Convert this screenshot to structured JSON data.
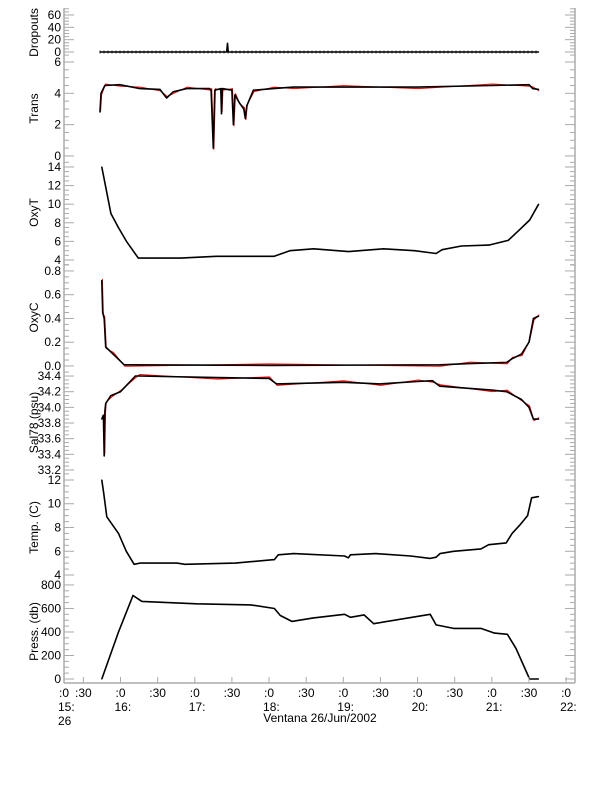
{
  "chart_data": {
    "type": "line",
    "title": "Ventana 26/Jun/2002",
    "xlabel": "Ventana 26/Jun/2002",
    "x_units": "hours (decimal, local time)",
    "xlim": [
      15.239,
      22.12
    ],
    "x_ticks": [
      {
        "x": 15.239,
        "lines": [
          ":0",
          "15:",
          "26"
        ]
      },
      {
        "x": 15.5,
        "lines": [
          ":30"
        ]
      },
      {
        "x": 16.0,
        "lines": [
          ":0",
          "16:"
        ]
      },
      {
        "x": 16.5,
        "lines": [
          ":30"
        ]
      },
      {
        "x": 17.0,
        "lines": [
          ":0",
          "17:"
        ]
      },
      {
        "x": 17.5,
        "lines": [
          ":30"
        ]
      },
      {
        "x": 18.0,
        "lines": [
          ":0",
          "18:"
        ]
      },
      {
        "x": 18.5,
        "lines": [
          ":30"
        ]
      },
      {
        "x": 19.0,
        "lines": [
          ":0",
          "19:"
        ]
      },
      {
        "x": 19.5,
        "lines": [
          ":30"
        ]
      },
      {
        "x": 20.0,
        "lines": [
          ":0",
          "20:"
        ]
      },
      {
        "x": 20.5,
        "lines": [
          ":30"
        ]
      },
      {
        "x": 21.0,
        "lines": [
          ":0",
          "21:"
        ]
      },
      {
        "x": 21.5,
        "lines": [
          ":30"
        ]
      },
      {
        "x": 22.0,
        "lines": [
          ":0",
          "22:"
        ]
      }
    ],
    "colors": {
      "line": "#000000",
      "raw": "#ff0000",
      "axis": "#aaaaaa"
    },
    "panels": [
      {
        "name": "dropouts",
        "ylabel": "Dropouts",
        "ylim": [
          -8.1,
          71.3
        ],
        "ticks": [
          "0",
          "20",
          "40",
          "60"
        ],
        "tick_values": [
          0,
          20,
          40,
          60
        ],
        "minor": 4,
        "noisy": false,
        "dotted": true,
        "x": [
          15.724,
          17.43,
          17.44,
          17.45,
          21.63
        ],
        "y": [
          0,
          0,
          14,
          0,
          0
        ]
      },
      {
        "name": "trans",
        "ylabel": "Trans",
        "ylim": [
          -0.26,
          6.32
        ],
        "ticks": [
          "0",
          "2",
          "4",
          "6"
        ],
        "tick_values": [
          0,
          2,
          4,
          6
        ],
        "minor": 4,
        "noisy": true,
        "x": [
          15.724,
          15.737,
          15.79,
          15.99,
          16.26,
          16.53,
          16.62,
          16.71,
          16.89,
          17.2,
          17.22,
          17.25,
          17.27,
          17.35,
          17.36,
          17.37,
          17.5,
          17.52,
          17.54,
          17.6,
          17.66,
          17.68,
          17.7,
          17.79,
          18.06,
          18.33,
          19.0,
          20.0,
          21.0,
          21.5,
          21.55,
          21.63
        ],
        "y": [
          2.8,
          4.0,
          4.5,
          4.55,
          4.3,
          4.25,
          3.7,
          4.1,
          4.3,
          4.3,
          4.2,
          0.5,
          4.2,
          4.3,
          2.7,
          4.3,
          4.2,
          2.0,
          3.9,
          3.4,
          3.0,
          2.4,
          3.2,
          4.2,
          4.3,
          4.4,
          4.4,
          4.4,
          4.5,
          4.55,
          4.3,
          4.25
        ]
      },
      {
        "name": "oxyt",
        "ylabel": "OxyT",
        "ylim": [
          3.46,
          14.75
        ],
        "ticks": [
          "4",
          "6",
          "8",
          "10",
          "12",
          "14"
        ],
        "tick_values": [
          4,
          6,
          8,
          10,
          12,
          14
        ],
        "minor": 4,
        "noisy": false,
        "x": [
          15.748,
          15.87,
          15.97,
          16.08,
          16.24,
          16.81,
          17.29,
          18.07,
          18.28,
          18.6,
          19.07,
          19.54,
          19.96,
          20.25,
          20.33,
          20.59,
          20.96,
          21.22,
          21.38,
          21.51,
          21.63
        ],
        "y": [
          14,
          9,
          7.5,
          6,
          4.2,
          4.2,
          4.4,
          4.4,
          5.0,
          5.2,
          4.9,
          5.2,
          5.0,
          4.7,
          5.1,
          5.5,
          5.6,
          6.1,
          7.3,
          8.3,
          10.0
        ]
      },
      {
        "name": "oxyc",
        "ylabel": "OxyC",
        "ylim": [
          -0.034,
          0.85
        ],
        "ticks": [
          "0.0",
          "0.2",
          "0.4",
          "0.6",
          "0.8"
        ],
        "tick_values": [
          0,
          0.2,
          0.4,
          0.6,
          0.8
        ],
        "minor": 4,
        "noisy": true,
        "x": [
          15.748,
          15.76,
          15.78,
          15.8,
          15.9,
          16.05,
          18.0,
          20.3,
          20.7,
          21.2,
          21.27,
          21.4,
          21.5,
          21.56,
          21.63
        ],
        "y": [
          0.72,
          0.45,
          0.4,
          0.16,
          0.1,
          0.01,
          0.005,
          0.01,
          0.02,
          0.03,
          0.06,
          0.1,
          0.2,
          0.4,
          0.42
        ]
      },
      {
        "name": "sal78",
        "ylabel": "Sal78 (psu)",
        "ylim": [
          33.136,
          34.477
        ],
        "ticks": [
          "33.2",
          "33.4",
          "33.6",
          "33.8",
          "34.0",
          "34.2",
          "34.4"
        ],
        "tick_values": [
          33.2,
          33.4,
          33.6,
          33.8,
          34.0,
          34.2,
          34.4
        ],
        "minor": 4,
        "noisy": true,
        "x": [
          15.748,
          15.77,
          15.78,
          15.79,
          15.8,
          15.87,
          16.0,
          16.2,
          16.25,
          17.3,
          18.0,
          18.1,
          19.0,
          19.5,
          20.0,
          20.2,
          20.3,
          21.0,
          21.2,
          21.4,
          21.5,
          21.56,
          21.63
        ],
        "y": [
          33.85,
          33.9,
          33.38,
          33.95,
          34.05,
          34.15,
          34.2,
          34.4,
          34.4,
          34.38,
          34.37,
          34.3,
          34.32,
          34.3,
          34.33,
          34.34,
          34.27,
          34.22,
          34.2,
          34.1,
          34.0,
          33.85,
          33.85
        ]
      },
      {
        "name": "temp",
        "ylabel": "Temp. (C)",
        "ylim": [
          3.58,
          12.42
        ],
        "ticks": [
          "4",
          "6",
          "8",
          "10",
          "12"
        ],
        "tick_values": [
          4,
          6,
          8,
          10,
          12
        ],
        "minor": 4,
        "noisy": false,
        "x": [
          15.748,
          15.774,
          15.816,
          15.973,
          16.078,
          16.183,
          16.262,
          16.76,
          16.865,
          17.547,
          18.072,
          18.125,
          18.334,
          19.017,
          19.069,
          19.095,
          19.436,
          19.908,
          20.17,
          20.249,
          20.302,
          20.485,
          20.853,
          20.958,
          21.194,
          21.273,
          21.377,
          21.482,
          21.535,
          21.629
        ],
        "y": [
          12,
          10.9,
          8.9,
          7.5,
          6,
          4.9,
          5.0,
          5.0,
          4.9,
          5.0,
          5.3,
          5.7,
          5.8,
          5.6,
          5.45,
          5.7,
          5.8,
          5.6,
          5.4,
          5.5,
          5.8,
          6.0,
          6.2,
          6.55,
          6.7,
          7.5,
          8.2,
          9,
          10.5,
          10.6
        ]
      },
      {
        "name": "press",
        "ylabel": "Press. (db)",
        "ylim": [
          -34,
          842
        ],
        "ticks": [
          "0",
          "200",
          "400",
          "600",
          "800"
        ],
        "tick_values": [
          0,
          200,
          400,
          600,
          800
        ],
        "minor": 4,
        "noisy": false,
        "x": [
          15.748,
          15.973,
          16.168,
          16.288,
          17.023,
          17.757,
          18.072,
          18.151,
          18.308,
          18.597,
          19.017,
          19.095,
          19.279,
          19.41,
          20.17,
          20.249,
          20.485,
          20.853,
          21.036,
          21.21,
          21.325,
          21.508,
          21.629
        ],
        "y": [
          0,
          400,
          710,
          660,
          640,
          630,
          600,
          540,
          490,
          520,
          550,
          525,
          545,
          470,
          550,
          460,
          430,
          430,
          390,
          380,
          260,
          0,
          0
        ]
      }
    ]
  }
}
